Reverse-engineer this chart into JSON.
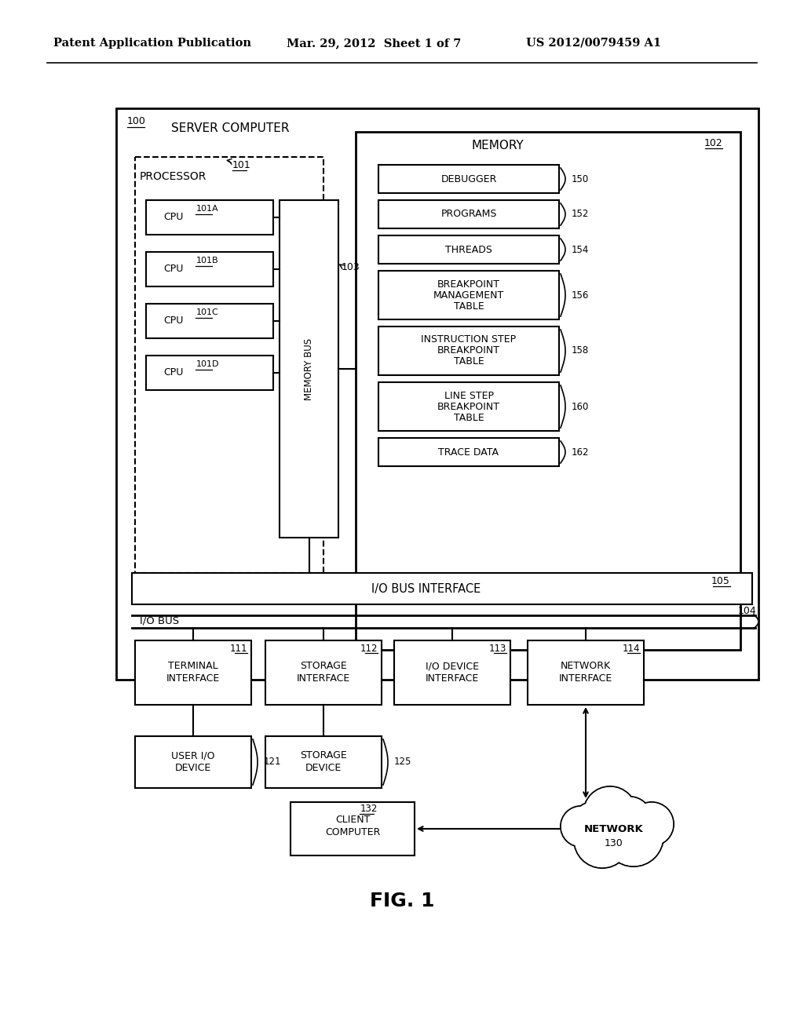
{
  "bg_color": "#ffffff",
  "header_text": "Patent Application Publication",
  "header_date": "Mar. 29, 2012  Sheet 1 of 7",
  "header_patent": "US 2012/0079459 A1",
  "fig_label": "FIG. 1",
  "memory_items": [
    {
      "text": "DEBUGGER",
      "label": "150",
      "nlines": 1
    },
    {
      "text": "PROGRAMS",
      "label": "152",
      "nlines": 1
    },
    {
      "text": "THREADS",
      "label": "154",
      "nlines": 1
    },
    {
      "text": "BREAKPOINT\nMANAGEMENT\nTABLE",
      "label": "156",
      "nlines": 3
    },
    {
      "text": "INSTRUCTION STEP\nBREAKPOINT\nTABLE",
      "label": "158",
      "nlines": 3
    },
    {
      "text": "LINE STEP\nBREAKPOINT\nTABLE",
      "label": "160",
      "nlines": 3
    },
    {
      "text": "TRACE DATA",
      "label": "162",
      "nlines": 1
    }
  ],
  "cpu_labels": [
    "101A",
    "101B",
    "101C",
    "101D"
  ],
  "interface_boxes": [
    {
      "text": "TERMINAL\nINTERFACE",
      "label": "111"
    },
    {
      "text": "STORAGE\nINTERFACE",
      "label": "112"
    },
    {
      "text": "I/O DEVICE\nINTERFACE",
      "label": "113"
    },
    {
      "text": "NETWORK\nINTERFACE",
      "label": "114"
    }
  ],
  "client_label": "132",
  "network_label": "130"
}
